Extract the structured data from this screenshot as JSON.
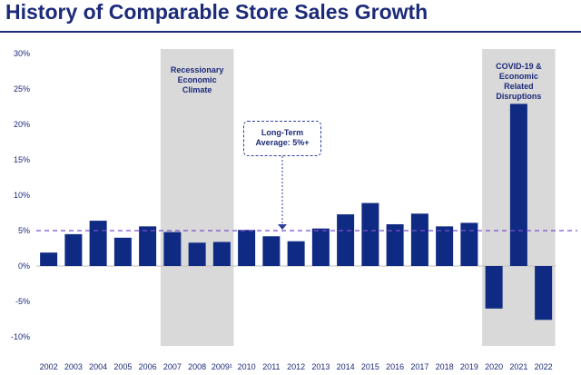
{
  "title": "History of Comparable Store Sales Growth",
  "colors": {
    "title": "#1c2a7a",
    "bar": "#0f2a83",
    "shade": "#d9d9d9",
    "avg_line": "#7c4fcf",
    "axis_text": "#1c2a7a"
  },
  "annotations": {
    "recession": "Recessionary\nEconomic\nClimate",
    "covid": "COVID-19 &\nEconomic\nRelated\nDisruptions",
    "long_term": "Long-Term\nAverage: 5%+"
  },
  "chart_data": {
    "type": "bar",
    "title": "History of Comparable Store Sales Growth",
    "xlabel": "",
    "ylabel": "",
    "categories": [
      "2002",
      "2003",
      "2004",
      "2005",
      "2006",
      "2007",
      "2008",
      "2009¹",
      "2010",
      "2011",
      "2012",
      "2013",
      "2014",
      "2015",
      "2016",
      "2017",
      "2018",
      "2019",
      "2020",
      "2021",
      "2022"
    ],
    "values": [
      1.9,
      4.5,
      6.4,
      4.0,
      5.6,
      4.8,
      3.3,
      3.4,
      5.1,
      4.2,
      3.5,
      5.3,
      7.3,
      8.9,
      5.9,
      7.4,
      5.6,
      6.1,
      -6.0,
      22.9,
      -7.6
    ],
    "ylim": [
      -10,
      30
    ],
    "yticks": [
      -10,
      -5,
      0,
      5,
      10,
      15,
      20,
      25,
      30
    ],
    "ytick_labels": [
      "-10%",
      "-5%",
      "0%",
      "5%",
      "10%",
      "15%",
      "20%",
      "25%",
      "30%"
    ],
    "long_term_average": 5,
    "shaded_periods": [
      {
        "label": "Recessionary Economic Climate",
        "from": "2007",
        "to": "2009¹"
      },
      {
        "label": "COVID-19 & Economic Related Disruptions",
        "from": "2020",
        "to": "2022"
      }
    ],
    "grid": false,
    "legend": "none"
  }
}
